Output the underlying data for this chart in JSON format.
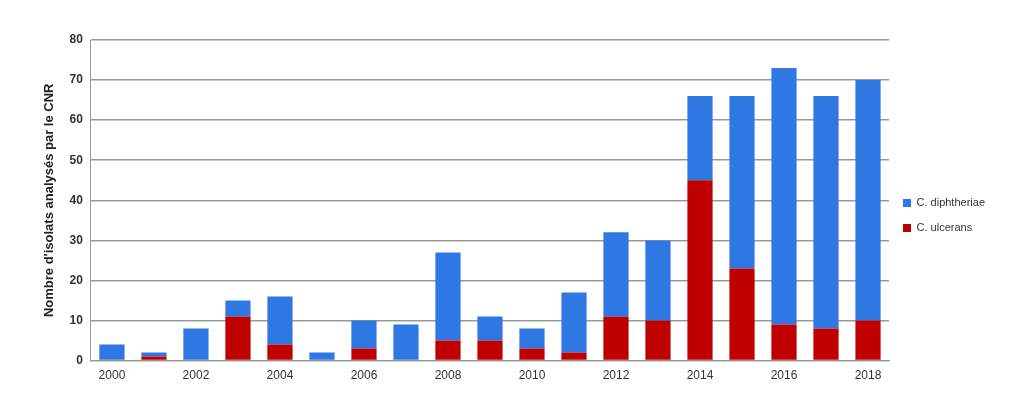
{
  "chart_data": {
    "type": "bar",
    "ylabel": "Nombre d'isolats analysés par le CNR",
    "categories": [
      "2000",
      null,
      "2002",
      null,
      "2004",
      null,
      "2006",
      null,
      "2008",
      null,
      "2010",
      null,
      "2012",
      null,
      "2014",
      null,
      "2016",
      null,
      "2018"
    ],
    "series": [
      {
        "name": "C. ulcerans",
        "color": "#c00000",
        "values": [
          0,
          1,
          0,
          11,
          4,
          0,
          3,
          0,
          5,
          5,
          3,
          2,
          11,
          10,
          45,
          23,
          9,
          8,
          10
        ]
      },
      {
        "name": "C. diphtheriae",
        "color": "#2f78e4",
        "values": [
          4,
          1,
          8,
          4,
          12,
          2,
          7,
          9,
          22,
          6,
          5,
          15,
          21,
          20,
          21,
          43,
          64,
          58,
          60
        ]
      }
    ],
    "stacked": true,
    "ylim": [
      0,
      80
    ],
    "yticks": [
      0,
      10,
      20,
      30,
      40,
      50,
      60,
      70,
      80
    ],
    "grid": "y",
    "legend": "right"
  }
}
